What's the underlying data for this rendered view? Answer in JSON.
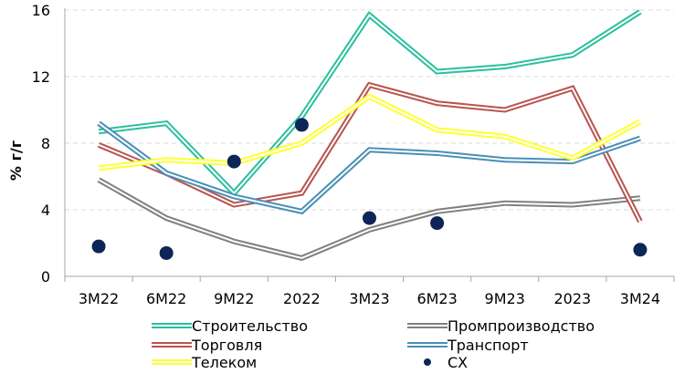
{
  "chart_data": {
    "type": "line",
    "ylabel": "% г/г",
    "ylim": [
      0,
      16
    ],
    "yticks": [
      0,
      4,
      8,
      12,
      16
    ],
    "grid": "horizontal-dashed",
    "legend_position": "bottom",
    "categories": [
      "3М22",
      "6М22",
      "9М22",
      "2022",
      "3М23",
      "6М23",
      "9М23",
      "2023",
      "3М24"
    ],
    "series": [
      {
        "name": "Строительство",
        "color": "#2bbf9f",
        "style": "double-line",
        "values": [
          8.7,
          9.2,
          5.0,
          9.6,
          15.7,
          12.3,
          12.6,
          13.3,
          15.9
        ]
      },
      {
        "name": "Промпроизводство",
        "color": "#808080",
        "style": "double-line",
        "values": [
          5.8,
          3.5,
          2.1,
          1.1,
          2.8,
          3.9,
          4.4,
          4.3,
          4.7
        ]
      },
      {
        "name": "Торговля",
        "color": "#b85450",
        "style": "double-line",
        "values": [
          7.9,
          6.2,
          4.3,
          5.0,
          11.5,
          10.4,
          10.0,
          11.3,
          3.3
        ]
      },
      {
        "name": "Транспорт",
        "color": "#4a8fb5",
        "style": "double-line",
        "values": [
          9.2,
          6.2,
          4.8,
          3.9,
          7.6,
          7.4,
          7.0,
          6.9,
          8.3
        ]
      },
      {
        "name": "Телеком",
        "color": "#ffff33",
        "style": "double-line",
        "values": [
          6.5,
          7.0,
          6.8,
          8.0,
          10.8,
          8.8,
          8.4,
          7.1,
          9.3
        ]
      },
      {
        "name": "СХ",
        "color": "#0d2557",
        "style": "markers",
        "values": [
          1.8,
          1.4,
          6.9,
          9.1,
          3.5,
          3.2,
          null,
          null,
          1.6
        ]
      }
    ]
  }
}
